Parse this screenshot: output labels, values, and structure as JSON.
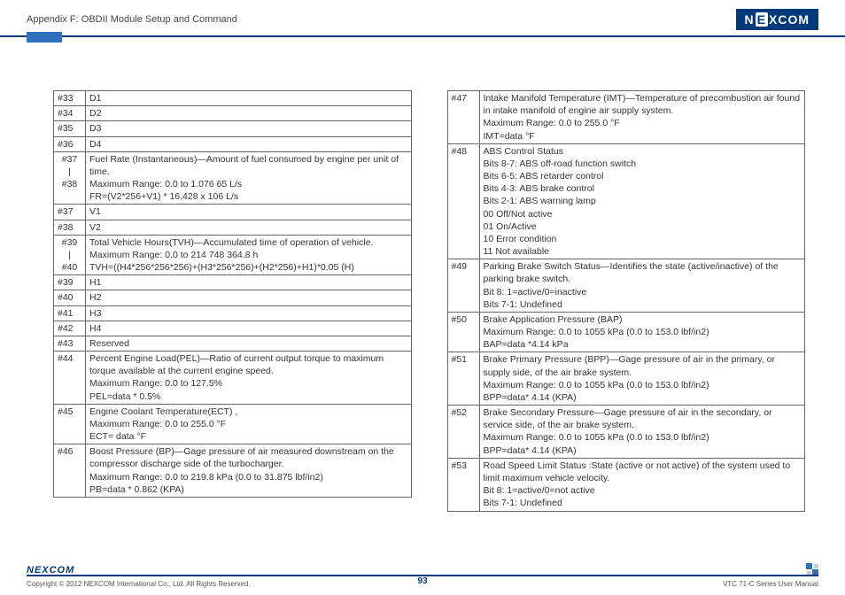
{
  "header": {
    "title": "Appendix F: OBDII Module Setup and Command",
    "brand": "NEXCOM"
  },
  "left_rows": [
    {
      "idx": "#33",
      "txt": "D1"
    },
    {
      "idx": "#34",
      "txt": "D2"
    },
    {
      "idx": "#35",
      "txt": "D3"
    },
    {
      "idx": "#36",
      "txt": "D4"
    },
    {
      "idx": "#37\n|\n#38",
      "range": true,
      "txt": "Fuel Rate (Instantaneous)—Amount of fuel consumed by engine per unit of time.\nMaximum Range: 0.0 to 1.076 65 L/s\nFR=(V2*256+V1) * 16.428 x 106 L/s"
    },
    {
      "idx": "#37",
      "txt": "V1"
    },
    {
      "idx": "#38",
      "txt": "V2"
    },
    {
      "idx": "#39\n|\n#40",
      "range": true,
      "txt": "Total Vehicle Hours(TVH)—Accumulated time of operation of vehicle.\nMaximum Range: 0.0 to 214 748 364.8 h\nTVH=((H4*256*256*256)+(H3*256*256)+(H2*256)+H1)*0.05 (H)"
    },
    {
      "idx": "#39",
      "txt": "H1"
    },
    {
      "idx": "#40",
      "txt": "H2"
    },
    {
      "idx": "#41",
      "txt": "H3"
    },
    {
      "idx": "#42",
      "txt": "H4"
    },
    {
      "idx": "#43",
      "txt": "Reserved"
    },
    {
      "idx": "#44",
      "txt": "Percent Engine Load(PEL)—Ratio of current output torque to maximum torque available at the current engine speed.\nMaximum Range: 0.0 to 127.5%\nPEL=data * 0.5%"
    },
    {
      "idx": "#45",
      "txt": "Engine Coolant Temperature(ECT) ,\nMaximum Range: 0.0 to 255.0 °F\nECT= data °F"
    },
    {
      "idx": "#46",
      "txt": "Boost Pressure (BP)—Gage pressure of air measured downstream on the compressor discharge side of the turbocharger.\nMaximum Range: 0.0 to 219.8 kPa (0.0 to 31.875 lbf/in2)\nPB=data * 0.862 (KPA)"
    }
  ],
  "right_rows": [
    {
      "idx": "#47",
      "txt": "Intake Manifold Temperature (IMT)—Temperature of precombustion air found in intake manifold of engine air supply system.\nMaximum Range: 0.0 to 255.0 °F\nIMT=data °F"
    },
    {
      "idx": "#48",
      "txt": "ABS Control Status\nBits 8-7: ABS off-road function switch\nBits 6-5: ABS retarder control\nBits 4-3: ABS brake control\nBits 2-1: ABS warning lamp\n00 Off/Not active\n01 On/Active\n10 Error condition\n11 Not available"
    },
    {
      "idx": "#49",
      "txt": "Parking Brake Switch Status—Identifies the state (active/inactive) of the parking brake switch.\nBit 8: 1=active/0=inactive\nBits 7-1: Undefined"
    },
    {
      "idx": "#50",
      "txt": "Brake Application Pressure (BAP)\nMaximum Range: 0.0 to 1055 kPa (0.0 to 153.0 lbf/in2)\nBAP=data *4.14 kPa"
    },
    {
      "idx": "#51",
      "txt": "Brake Primary Pressure (BPP)—Gage pressure of air in the primary, or supply side, of the air brake system.\nMaximum Range: 0.0 to 1055 kPa (0.0 to 153.0 lbf/in2)\nBPP=data* 4.14 (KPA)"
    },
    {
      "idx": "#52",
      "txt": "Brake Secondary Pressure—Gage pressure of air in the secondary, or service side, of the air brake system.\nMaximum Range: 0.0 to 1055 kPa (0.0 to 153.0 lbf/in2)\nBPP=data* 4.14 (KPA)"
    },
    {
      "idx": "#53",
      "txt": "Road Speed Limit Status :State (active or not active) of the system used to limit maximum vehicle velocity.\nBit 8: 1=active/0=not active\nBits 7-1: Undefined"
    }
  ],
  "footer": {
    "copyright": "Copyright © 2012 NEXCOM International Co., Ltd. All Rights Reserved.",
    "page": "93",
    "manual": "VTC 71-C Series User Manual",
    "logo": "NEXCOM"
  }
}
